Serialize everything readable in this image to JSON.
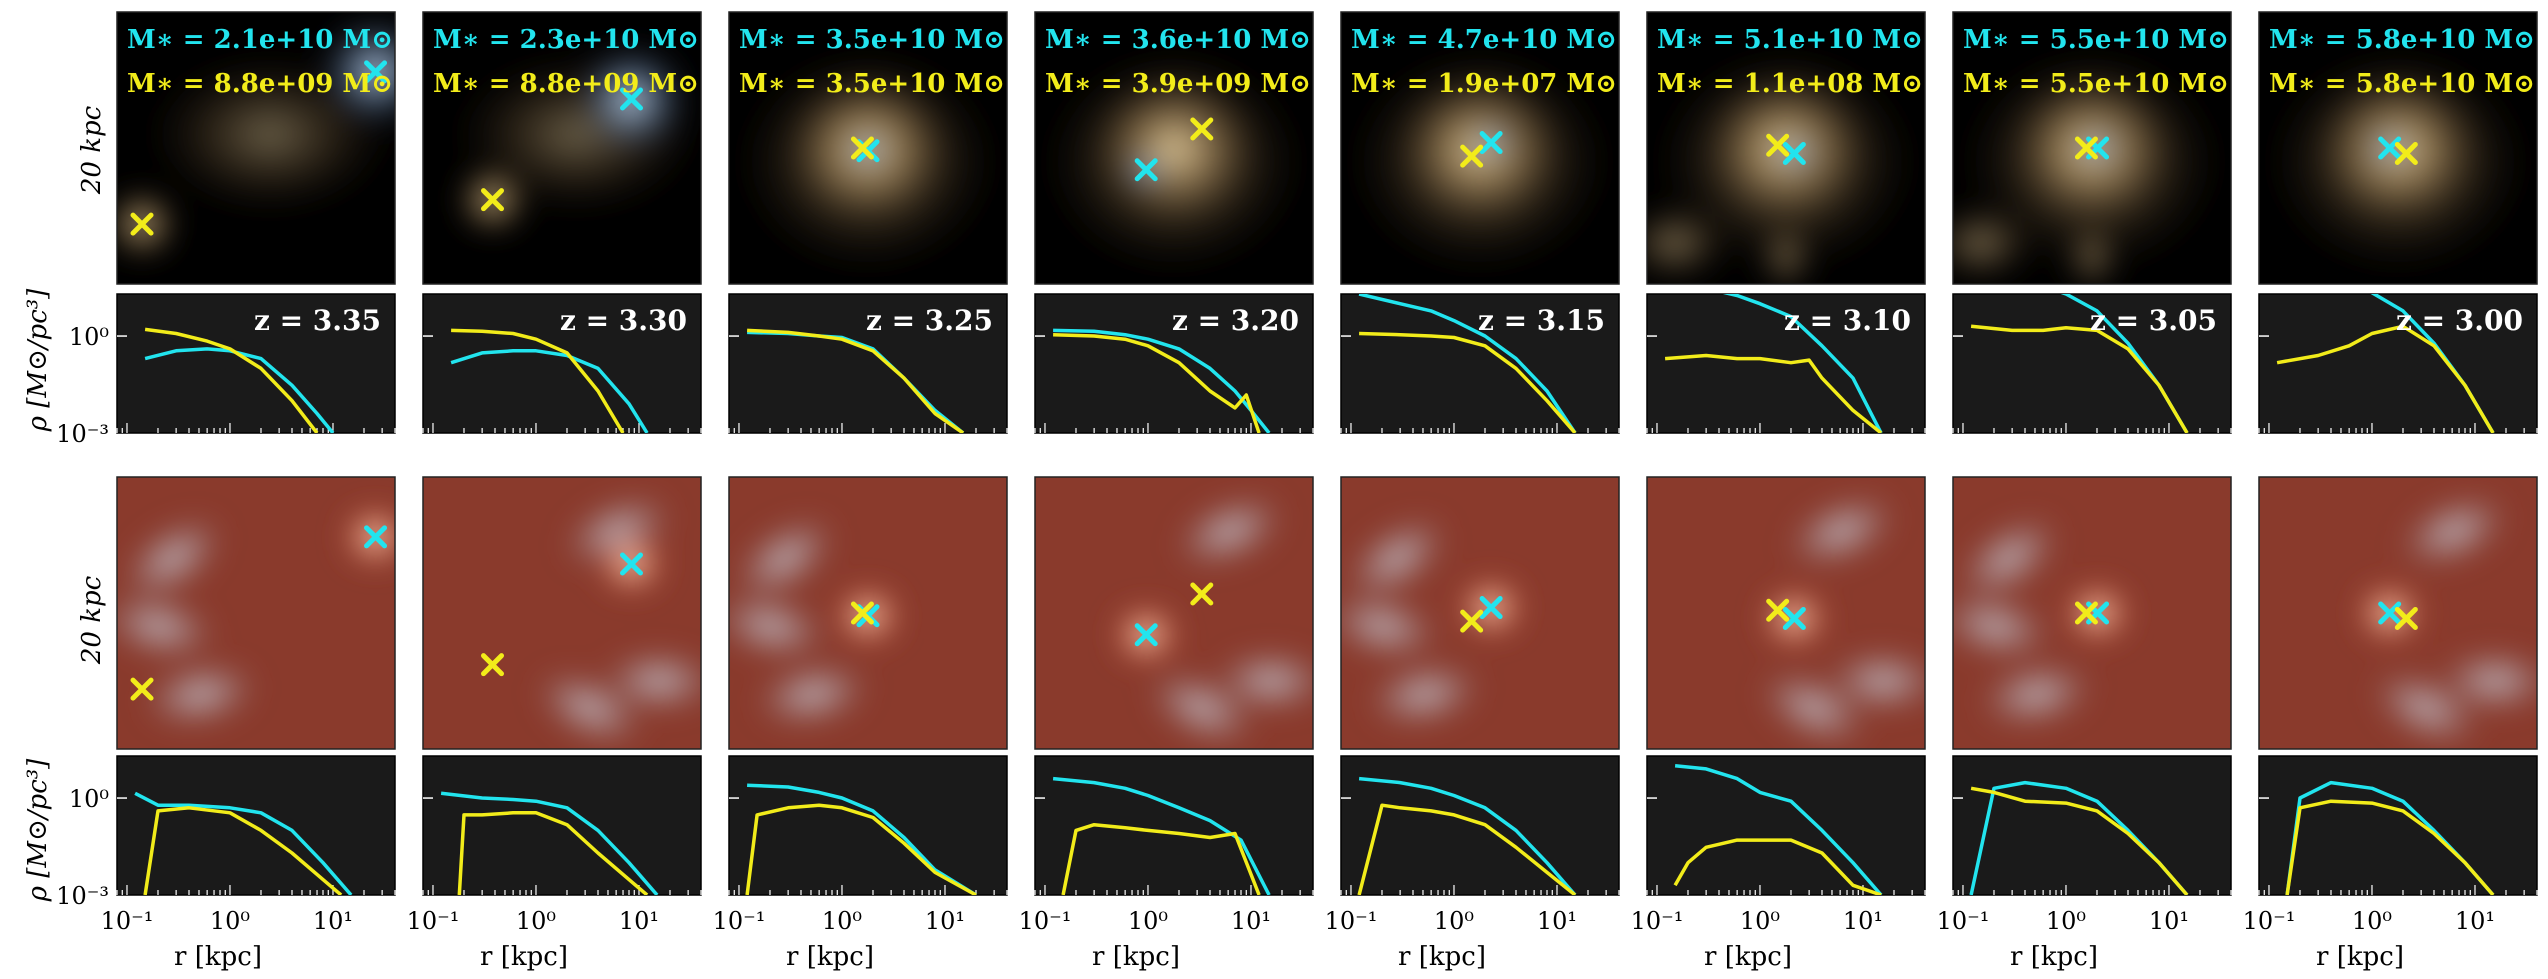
{
  "figure": {
    "scale_label": "20 kpc",
    "ylabel_profile": "ρ [M⊙/pc³]",
    "xlabel": "r [kpc]",
    "xticks": [
      "10⁻¹",
      "10⁰",
      "10¹"
    ],
    "yticks": [
      "10⁰",
      "10⁻³"
    ]
  },
  "colors": {
    "cyan": "#22e4ee",
    "yellow": "#f2ec1a",
    "panel_bg": "#1a1a1a"
  },
  "panels": [
    {
      "z": "z = 3.35",
      "mass_cyan": "M∗ = 2.1e+10 M⊙",
      "mass_yellow": "M∗ = 8.8e+09 M⊙"
    },
    {
      "z": "z = 3.30",
      "mass_cyan": "M∗ = 2.3e+10 M⊙",
      "mass_yellow": "M∗ = 8.8e+09 M⊙"
    },
    {
      "z": "z = 3.25",
      "mass_cyan": "M∗ = 3.5e+10 M⊙",
      "mass_yellow": "M∗ = 3.5e+10 M⊙"
    },
    {
      "z": "z = 3.20",
      "mass_cyan": "M∗ = 3.6e+10 M⊙",
      "mass_yellow": "M∗ = 3.9e+09 M⊙"
    },
    {
      "z": "z = 3.15",
      "mass_cyan": "M∗ = 4.7e+10 M⊙",
      "mass_yellow": "M∗ = 1.9e+07 M⊙"
    },
    {
      "z": "z = 3.10",
      "mass_cyan": "M∗ = 5.1e+10 M⊙",
      "mass_yellow": "M∗ = 1.1e+08 M⊙"
    },
    {
      "z": "z = 3.05",
      "mass_cyan": "M∗ = 5.5e+10 M⊙",
      "mass_yellow": "M∗ = 5.5e+10 M⊙"
    },
    {
      "z": "z = 3.00",
      "mass_cyan": "M∗ = 5.8e+10 M⊙",
      "mass_yellow": "M∗ = 5.8e+10 M⊙"
    }
  ],
  "chart_data": {
    "type": "line",
    "xlabel": "r [kpc]",
    "ylabel": "ρ [M⊙/pc³]",
    "xscale": "log",
    "yscale": "log",
    "xlim": [
      0.08,
      40
    ],
    "ylim": [
      0.001,
      20
    ],
    "panel_groups": [
      {
        "component": "stars",
        "panels": [
          {
            "z": 3.35,
            "series": [
              {
                "color": "cyan",
                "x": [
                  0.15,
                  0.3,
                  0.6,
                  1,
                  2,
                  4,
                  7,
                  10
                ],
                "y": [
                  0.2,
                  0.35,
                  0.4,
                  0.35,
                  0.2,
                  0.03,
                  0.004,
                  0.001
                ]
              },
              {
                "color": "yellow",
                "x": [
                  0.15,
                  0.3,
                  0.6,
                  1,
                  2,
                  4,
                  7
                ],
                "y": [
                  1.6,
                  1.2,
                  0.7,
                  0.4,
                  0.1,
                  0.01,
                  0.001
                ]
              }
            ]
          },
          {
            "z": 3.3,
            "series": [
              {
                "color": "cyan",
                "x": [
                  0.15,
                  0.3,
                  0.6,
                  1,
                  2,
                  4,
                  8,
                  12
                ],
                "y": [
                  0.15,
                  0.3,
                  0.35,
                  0.35,
                  0.25,
                  0.1,
                  0.008,
                  0.001
                ]
              },
              {
                "color": "yellow",
                "x": [
                  0.15,
                  0.3,
                  0.6,
                  1,
                  2,
                  4,
                  7
                ],
                "y": [
                  1.5,
                  1.4,
                  1.2,
                  0.8,
                  0.3,
                  0.02,
                  0.001
                ]
              }
            ]
          },
          {
            "z": 3.25,
            "series": [
              {
                "color": "cyan",
                "x": [
                  0.12,
                  0.3,
                  0.6,
                  1,
                  2,
                  4,
                  8,
                  15
                ],
                "y": [
                  1.3,
                  1.2,
                  1.0,
                  0.9,
                  0.4,
                  0.05,
                  0.005,
                  0.001
                ]
              },
              {
                "color": "yellow",
                "x": [
                  0.12,
                  0.3,
                  0.6,
                  1,
                  2,
                  4,
                  8,
                  15
                ],
                "y": [
                  1.5,
                  1.3,
                  1.0,
                  0.8,
                  0.35,
                  0.05,
                  0.004,
                  0.001
                ]
              }
            ]
          },
          {
            "z": 3.2,
            "series": [
              {
                "color": "cyan",
                "x": [
                  0.12,
                  0.3,
                  0.6,
                  1,
                  2,
                  4,
                  7,
                  10,
                  15
                ],
                "y": [
                  1.5,
                  1.4,
                  1.1,
                  0.8,
                  0.4,
                  0.1,
                  0.02,
                  0.005,
                  0.001
                ]
              },
              {
                "color": "yellow",
                "x": [
                  0.12,
                  0.3,
                  0.6,
                  1,
                  2,
                  4,
                  7,
                  9,
                  12
                ],
                "y": [
                  1.1,
                  1.0,
                  0.8,
                  0.5,
                  0.15,
                  0.02,
                  0.006,
                  0.015,
                  0.001
                ]
              }
            ]
          },
          {
            "z": 3.15,
            "series": [
              {
                "color": "cyan",
                "x": [
                  0.12,
                  0.3,
                  0.6,
                  1,
                  2,
                  4,
                  8,
                  15
                ],
                "y": [
                  20,
                  10,
                  6,
                  3,
                  1,
                  0.2,
                  0.02,
                  0.001
                ]
              },
              {
                "color": "yellow",
                "x": [
                  0.12,
                  0.3,
                  0.6,
                  1,
                  2,
                  4,
                  8,
                  15
                ],
                "y": [
                  1.2,
                  1.1,
                  1.0,
                  0.9,
                  0.5,
                  0.1,
                  0.01,
                  0.001
                ]
              }
            ]
          },
          {
            "z": 3.1,
            "series": [
              {
                "color": "cyan",
                "x": [
                  0.12,
                  0.3,
                  0.6,
                  1,
                  2,
                  4,
                  8,
                  15
                ],
                "y": [
                  35,
                  30,
                  18,
                  10,
                  4,
                  0.5,
                  0.05,
                  0.001
                ]
              },
              {
                "color": "yellow",
                "x": [
                  0.12,
                  0.3,
                  0.6,
                  1,
                  2,
                  3,
                  4,
                  8,
                  15
                ],
                "y": [
                  0.2,
                  0.25,
                  0.2,
                  0.2,
                  0.15,
                  0.18,
                  0.05,
                  0.005,
                  0.001
                ]
              }
            ]
          },
          {
            "z": 3.05,
            "series": [
              {
                "color": "cyan",
                "x": [
                  0.12,
                  0.3,
                  0.6,
                  1,
                  2,
                  4,
                  8,
                  15
                ],
                "y": [
                  60,
                  50,
                  35,
                  20,
                  6,
                  0.6,
                  0.03,
                  0.001
                ]
              },
              {
                "color": "yellow",
                "x": [
                  0.12,
                  0.3,
                  0.6,
                  1,
                  2,
                  4,
                  8,
                  15
                ],
                "y": [
                  2,
                  1.5,
                  1.5,
                  1.8,
                  1.5,
                  0.4,
                  0.03,
                  0.001
                ]
              }
            ]
          },
          {
            "z": 3.0,
            "series": [
              {
                "color": "cyan",
                "x": [
                  0.12,
                  0.3,
                  0.6,
                  1,
                  2,
                  4,
                  8,
                  15
                ],
                "y": [
                  60,
                  55,
                  40,
                  22,
                  6,
                  0.6,
                  0.03,
                  0.001
                ]
              },
              {
                "color": "yellow",
                "x": [
                  0.12,
                  0.3,
                  0.6,
                  1,
                  2,
                  4,
                  8,
                  15
                ],
                "y": [
                  0.15,
                  0.25,
                  0.5,
                  1.2,
                  2,
                  0.5,
                  0.03,
                  0.001
                ]
              }
            ]
          }
        ]
      },
      {
        "component": "gas",
        "panels": [
          {
            "z": 3.35,
            "series": [
              {
                "color": "cyan",
                "x": [
                  0.12,
                  0.2,
                  0.4,
                  1,
                  2,
                  4,
                  8,
                  15
                ],
                "y": [
                  1.4,
                  0.6,
                  0.6,
                  0.5,
                  0.35,
                  0.1,
                  0.01,
                  0.001
                ]
              },
              {
                "color": "yellow",
                "x": [
                  0.15,
                  0.2,
                  0.4,
                  1,
                  2,
                  4,
                  8,
                  12
                ],
                "y": [
                  0.001,
                  0.4,
                  0.5,
                  0.35,
                  0.1,
                  0.02,
                  0.003,
                  0.001
                ]
              }
            ]
          },
          {
            "z": 3.3,
            "series": [
              {
                "color": "cyan",
                "x": [
                  0.12,
                  0.3,
                  0.6,
                  1,
                  2,
                  4,
                  8,
                  15
                ],
                "y": [
                  1.4,
                  1.0,
                  0.9,
                  0.8,
                  0.5,
                  0.1,
                  0.01,
                  0.001
                ]
              },
              {
                "color": "yellow",
                "x": [
                  0.18,
                  0.2,
                  0.3,
                  0.6,
                  1,
                  2,
                  4,
                  8,
                  12
                ],
                "y": [
                  0.001,
                  0.3,
                  0.3,
                  0.35,
                  0.35,
                  0.15,
                  0.02,
                  0.003,
                  0.001
                ]
              }
            ]
          },
          {
            "z": 3.25,
            "series": [
              {
                "color": "cyan",
                "x": [
                  0.12,
                  0.3,
                  0.6,
                  1,
                  2,
                  4,
                  8,
                  20
                ],
                "y": [
                  2.5,
                  2.2,
                  1.5,
                  1.0,
                  0.4,
                  0.06,
                  0.006,
                  0.001
                ]
              },
              {
                "color": "yellow",
                "x": [
                  0.12,
                  0.15,
                  0.3,
                  0.6,
                  1,
                  2,
                  4,
                  8,
                  20
                ],
                "y": [
                  0.001,
                  0.3,
                  0.5,
                  0.6,
                  0.5,
                  0.25,
                  0.04,
                  0.005,
                  0.001
                ]
              }
            ]
          },
          {
            "z": 3.2,
            "series": [
              {
                "color": "cyan",
                "x": [
                  0.12,
                  0.3,
                  0.6,
                  1,
                  2,
                  4,
                  8,
                  15
                ],
                "y": [
                  4,
                  3,
                  2,
                  1.2,
                  0.5,
                  0.2,
                  0.05,
                  0.001
                ]
              },
              {
                "color": "yellow",
                "x": [
                  0.15,
                  0.2,
                  0.3,
                  0.6,
                  1,
                  2,
                  4,
                  7,
                  12
                ],
                "y": [
                  0.001,
                  0.1,
                  0.15,
                  0.12,
                  0.1,
                  0.08,
                  0.06,
                  0.08,
                  0.001
                ]
              }
            ]
          },
          {
            "z": 3.15,
            "series": [
              {
                "color": "cyan",
                "x": [
                  0.12,
                  0.3,
                  0.6,
                  1,
                  2,
                  4,
                  8,
                  15
                ],
                "y": [
                  4,
                  3,
                  2,
                  1.2,
                  0.5,
                  0.1,
                  0.01,
                  0.001
                ]
              },
              {
                "color": "yellow",
                "x": [
                  0.12,
                  0.2,
                  0.3,
                  0.6,
                  1,
                  2,
                  4,
                  8,
                  15
                ],
                "y": [
                  0.001,
                  0.6,
                  0.5,
                  0.4,
                  0.3,
                  0.15,
                  0.03,
                  0.005,
                  0.001
                ]
              }
            ]
          },
          {
            "z": 3.1,
            "series": [
              {
                "color": "cyan",
                "x": [
                  0.15,
                  0.3,
                  0.6,
                  1,
                  2,
                  4,
                  8,
                  15
                ],
                "y": [
                  10,
                  8,
                  4,
                  1.5,
                  0.8,
                  0.1,
                  0.01,
                  0.001
                ]
              },
              {
                "color": "yellow",
                "x": [
                  0.15,
                  0.2,
                  0.3,
                  0.6,
                  1,
                  2,
                  4,
                  8,
                  15
                ],
                "y": [
                  0.002,
                  0.01,
                  0.03,
                  0.05,
                  0.05,
                  0.05,
                  0.02,
                  0.002,
                  0.001
                ]
              }
            ]
          },
          {
            "z": 3.05,
            "series": [
              {
                "color": "cyan",
                "x": [
                  0.12,
                  0.2,
                  0.4,
                  1,
                  2,
                  4,
                  8,
                  15
                ],
                "y": [
                  0.001,
                  2,
                  3,
                  2,
                  0.8,
                  0.1,
                  0.01,
                  0.001
                ]
              },
              {
                "color": "yellow",
                "x": [
                  0.12,
                  0.2,
                  0.4,
                  1,
                  2,
                  4,
                  8,
                  15
                ],
                "y": [
                  2,
                  1.5,
                  0.8,
                  0.7,
                  0.4,
                  0.08,
                  0.01,
                  0.001
                ]
              }
            ]
          },
          {
            "z": 3.0,
            "series": [
              {
                "color": "cyan",
                "x": [
                  0.15,
                  0.2,
                  0.4,
                  1,
                  2,
                  4,
                  8,
                  15
                ],
                "y": [
                  0.001,
                  1,
                  3,
                  2,
                  0.8,
                  0.1,
                  0.01,
                  0.001
                ]
              },
              {
                "color": "yellow",
                "x": [
                  0.15,
                  0.2,
                  0.4,
                  1,
                  2,
                  4,
                  8,
                  15
                ],
                "y": [
                  0.001,
                  0.5,
                  0.8,
                  0.7,
                  0.4,
                  0.08,
                  0.01,
                  0.001
                ]
              }
            ]
          }
        ]
      }
    ]
  }
}
